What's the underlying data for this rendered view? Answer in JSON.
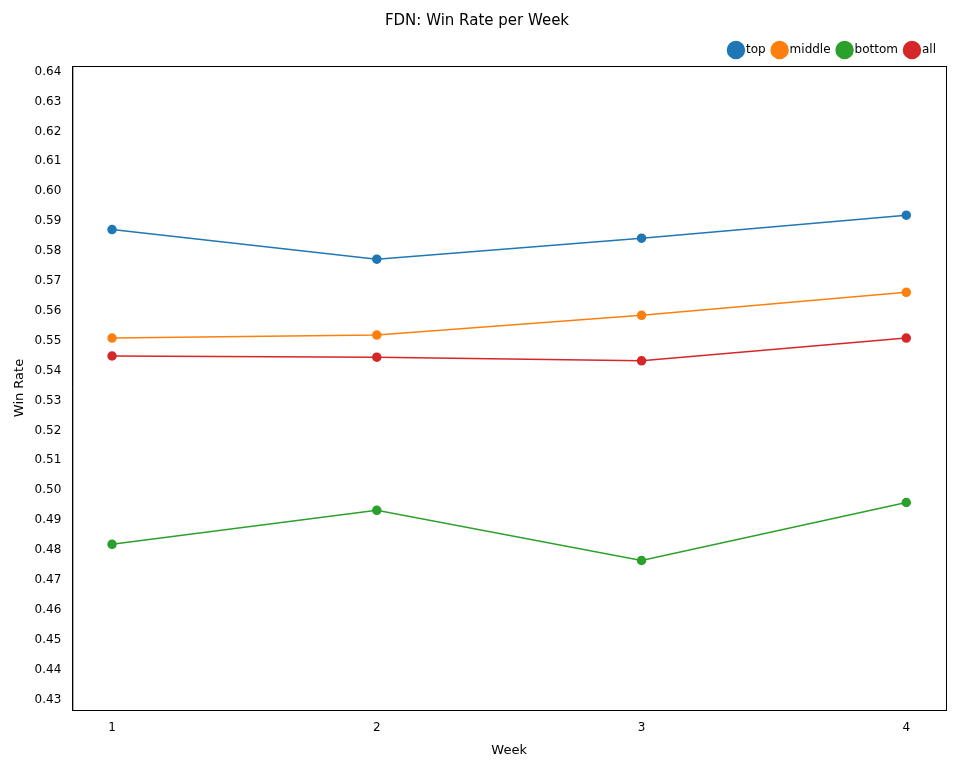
{
  "chart_data": {
    "type": "line",
    "title": "FDN: Win Rate per Week",
    "x_label": "Week",
    "y_label": "Win Rate",
    "x": [
      1,
      2,
      3,
      4
    ],
    "xlim": [
      0.85,
      4.15
    ],
    "xticks": [
      1,
      2,
      3,
      4
    ],
    "ylim": [
      0.4265,
      0.6419
    ],
    "yticks": [
      0.43,
      0.44,
      0.45,
      0.46,
      0.47,
      0.48,
      0.49,
      {
        "value": 0.5,
        "label": "0.50"
      },
      0.51,
      0.52,
      0.53,
      0.54,
      0.55,
      0.56,
      0.57,
      0.58,
      0.59,
      {
        "value": 0.6,
        "label": "0.60"
      },
      0.61,
      0.62,
      0.63,
      0.64
    ],
    "grid": false,
    "legend": "upper right",
    "marker": "circle",
    "line_style": "solid",
    "series": [
      {
        "name": "top",
        "color": "#1f77b4",
        "values": [
          0.5872,
          0.5773,
          0.5843,
          0.592
        ]
      },
      {
        "name": "middle",
        "color": "#ff7f0e",
        "values": [
          0.5509,
          0.5519,
          0.5585,
          0.5662
        ]
      },
      {
        "name": "bottom",
        "color": "#2ca02c",
        "values": [
          0.4819,
          0.4933,
          0.4765,
          0.4959
        ]
      },
      {
        "name": "all",
        "color": "#d62728",
        "values": [
          0.5449,
          0.5445,
          0.5433,
          0.5509
        ]
      }
    ]
  }
}
